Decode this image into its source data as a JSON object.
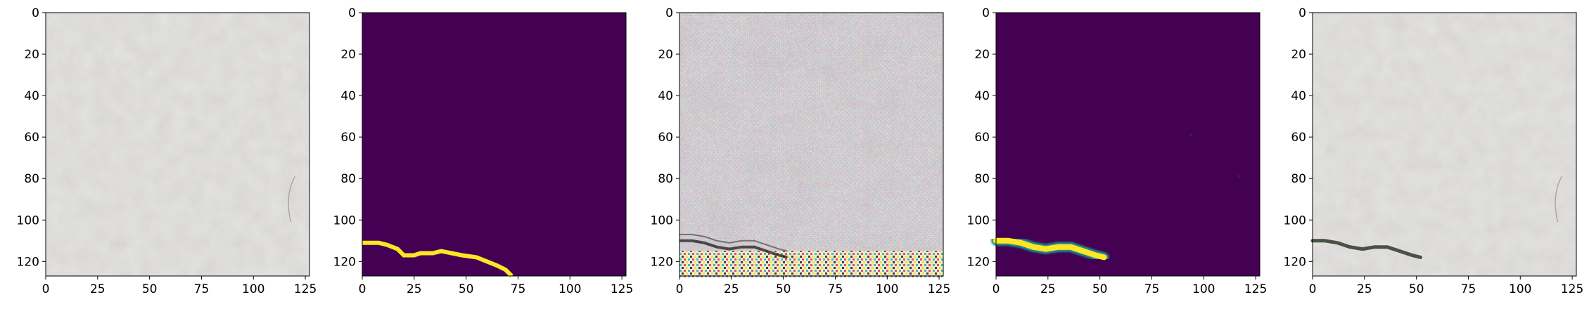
{
  "figure": {
    "panels": [
      {
        "id": "input-image",
        "kind": "photo-concrete-uncracked"
      },
      {
        "id": "ground-truth-mask",
        "kind": "mask-thin-crack"
      },
      {
        "id": "generated-image",
        "kind": "photo-noisy-artifacts"
      },
      {
        "id": "predicted-mask",
        "kind": "mask-thick-crack"
      },
      {
        "id": "overlay-image",
        "kind": "photo-concrete-with-crack"
      }
    ],
    "axes": {
      "xlim": [
        0,
        127
      ],
      "ylim": [
        127,
        0
      ],
      "xticks": [
        "0",
        "25",
        "50",
        "75",
        "100",
        "125"
      ],
      "yticks": [
        "0",
        "20",
        "40",
        "60",
        "80",
        "100",
        "120"
      ]
    },
    "colors": {
      "mask_background": "#440154",
      "mask_edge": "#21918c",
      "mask_crack": "#fde725",
      "concrete": "#d6d5d3",
      "crack_dark": "#3a2f2c"
    }
  }
}
